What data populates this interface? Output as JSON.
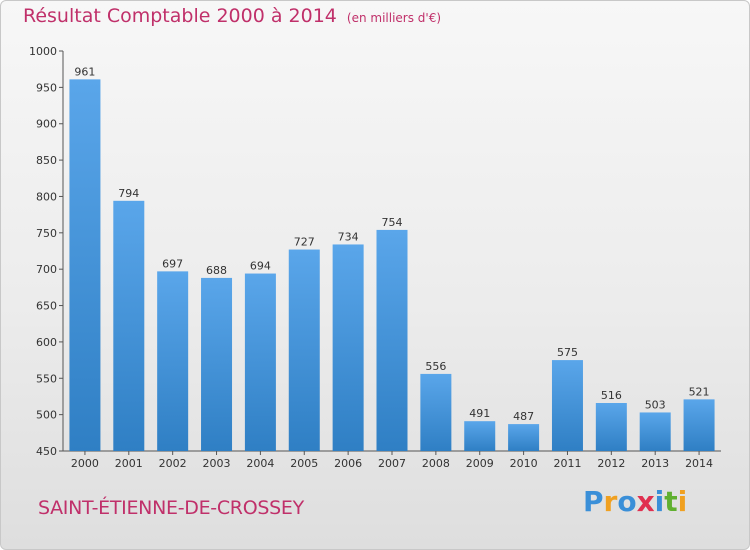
{
  "chart_data": {
    "type": "bar",
    "title": "Résultat Comptable 2000 à 2014",
    "subtitle": "(en milliers d'€)",
    "categories": [
      "2000",
      "2001",
      "2002",
      "2003",
      "2004",
      "2005",
      "2006",
      "2007",
      "2008",
      "2009",
      "2010",
      "2011",
      "2012",
      "2013",
      "2014"
    ],
    "values": [
      961,
      794,
      697,
      688,
      694,
      727,
      734,
      754,
      556,
      491,
      487,
      575,
      516,
      503,
      521
    ],
    "ylim": [
      450,
      1000
    ],
    "yticks": [
      450,
      500,
      550,
      600,
      650,
      700,
      750,
      800,
      850,
      900,
      950,
      1000
    ],
    "xlabel": "",
    "ylabel": "",
    "grid": false,
    "bar_color": "#3a8fd8"
  },
  "footer": {
    "commune": "SAINT-ÉTIENNE-DE-CROSSEY"
  },
  "brand": {
    "letters": [
      "P",
      "r",
      "o",
      "x",
      "i",
      "t",
      "i"
    ],
    "colors": [
      "#3a8fd8",
      "#f0a020",
      "#3a8fd8",
      "#e03050",
      "#3a8fd8",
      "#60b030",
      "#f0a020"
    ]
  }
}
